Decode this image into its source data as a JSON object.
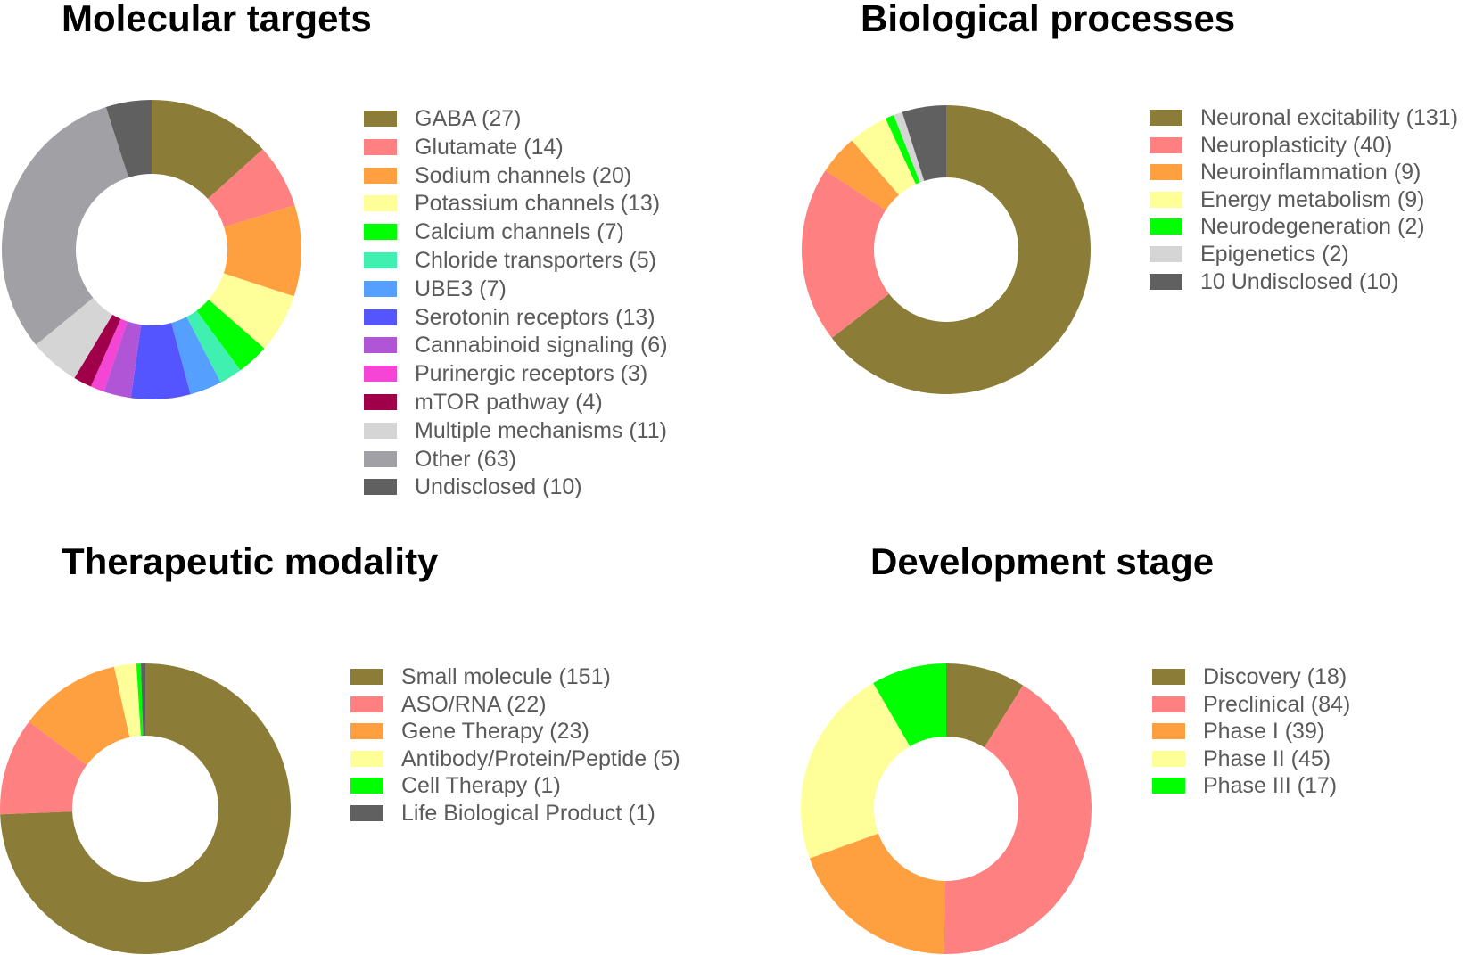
{
  "chart_data": [
    {
      "type": "donut",
      "title": "Molecular targets",
      "legend_position": "right",
      "start": "12 o'clock, clockwise",
      "series": [
        {
          "label": "GABA (27)",
          "name": "GABA",
          "value": 27,
          "color": "#8B7D37"
        },
        {
          "label": "Glutamate (14)",
          "name": "Glutamate",
          "value": 14,
          "color": "#FF8080"
        },
        {
          "label": "Sodium channels (20)",
          "name": "Sodium channels",
          "value": 20,
          "color": "#FFA040"
        },
        {
          "label": "Potassium channels (13)",
          "name": "Potassium channels",
          "value": 13,
          "color": "#FFFF99"
        },
        {
          "label": "Calcium channels (7)",
          "name": "Calcium channels",
          "value": 7,
          "color": "#00FF00"
        },
        {
          "label": "Chloride transporters (5)",
          "name": "Chloride transporters",
          "value": 5,
          "color": "#40F0B0"
        },
        {
          "label": "UBE3 (7)",
          "name": "UBE3",
          "value": 7,
          "color": "#55A0FF"
        },
        {
          "label": "Serotonin receptors (13)",
          "name": "Serotonin receptors",
          "value": 13,
          "color": "#5555FF"
        },
        {
          "label": "Cannabinoid signaling (6)",
          "name": "Cannabinoid signaling",
          "value": 6,
          "color": "#B055D5"
        },
        {
          "label": "Purinergic receptors (3)",
          "name": "Purinergic receptors",
          "value": 3,
          "color": "#F545D5"
        },
        {
          "label": "mTOR pathway (4)",
          "name": "mTOR pathway",
          "value": 4,
          "color": "#A0004A"
        },
        {
          "label": "Multiple mechanisms (11)",
          "name": "Multiple mechanisms",
          "value": 11,
          "color": "#D5D5D5"
        },
        {
          "label": "Other (63)",
          "name": "Other",
          "value": 63,
          "color": "#A0A0A5"
        },
        {
          "label": "Undisclosed (10)",
          "name": "Undisclosed",
          "value": 10,
          "color": "#606060"
        }
      ]
    },
    {
      "type": "donut",
      "title": "Biological processes",
      "legend_position": "right",
      "start": "12 o'clock, clockwise",
      "series": [
        {
          "label": "Neuronal excitability (131)",
          "name": "Neuronal excitability",
          "value": 131,
          "color": "#8B7D37"
        },
        {
          "label": "Neuroplasticity (40)",
          "name": "Neuroplasticity",
          "value": 40,
          "color": "#FF8080"
        },
        {
          "label": "Neuroinflammation (9)",
          "name": "Neuroinflammation",
          "value": 9,
          "color": "#FFA040"
        },
        {
          "label": "Energy metabolism (9)",
          "name": "Energy metabolism",
          "value": 9,
          "color": "#FFFF99"
        },
        {
          "label": "Neurodegeneration (2)",
          "name": "Neurodegeneration",
          "value": 2,
          "color": "#00FF00"
        },
        {
          "label": "Epigenetics (2)",
          "name": "Epigenetics",
          "value": 2,
          "color": "#D5D5D5"
        },
        {
          "label": "10 Undisclosed (10)",
          "name": "10 Undisclosed",
          "value": 10,
          "color": "#606060"
        }
      ]
    },
    {
      "type": "donut",
      "title": "Therapeutic modality",
      "legend_position": "right",
      "start": "12 o'clock, clockwise",
      "series": [
        {
          "label": "Small molecule (151)",
          "name": "Small molecule",
          "value": 151,
          "color": "#8B7D37"
        },
        {
          "label": "ASO/RNA (22)",
          "name": "ASO/RNA",
          "value": 22,
          "color": "#FF8080"
        },
        {
          "label": "Gene Therapy (23)",
          "name": "Gene Therapy",
          "value": 23,
          "color": "#FFA040"
        },
        {
          "label": "Antibody/Protein/Peptide (5)",
          "name": "Antibody/Protein/Peptide",
          "value": 5,
          "color": "#FFFF99"
        },
        {
          "label": "Cell Therapy (1)",
          "name": "Cell Therapy",
          "value": 1,
          "color": "#00FF00"
        },
        {
          "label": "Life Biological Product (1)",
          "name": "Life Biological Product",
          "value": 1,
          "color": "#606060"
        }
      ]
    },
    {
      "type": "donut",
      "title": "Development stage",
      "legend_position": "right",
      "start": "12 o'clock, clockwise",
      "series": [
        {
          "label": "Discovery (18)",
          "name": "Discovery",
          "value": 18,
          "color": "#8B7D37"
        },
        {
          "label": "Preclinical (84)",
          "name": "Preclinical",
          "value": 84,
          "color": "#FF8080"
        },
        {
          "label": "Phase I (39)",
          "name": "Phase I",
          "value": 39,
          "color": "#FFA040"
        },
        {
          "label": "Phase II (45)",
          "name": "Phase II",
          "value": 45,
          "color": "#FFFF99"
        },
        {
          "label": "Phase III (17)",
          "name": "Phase III",
          "value": 17,
          "color": "#00FF00"
        }
      ]
    }
  ]
}
